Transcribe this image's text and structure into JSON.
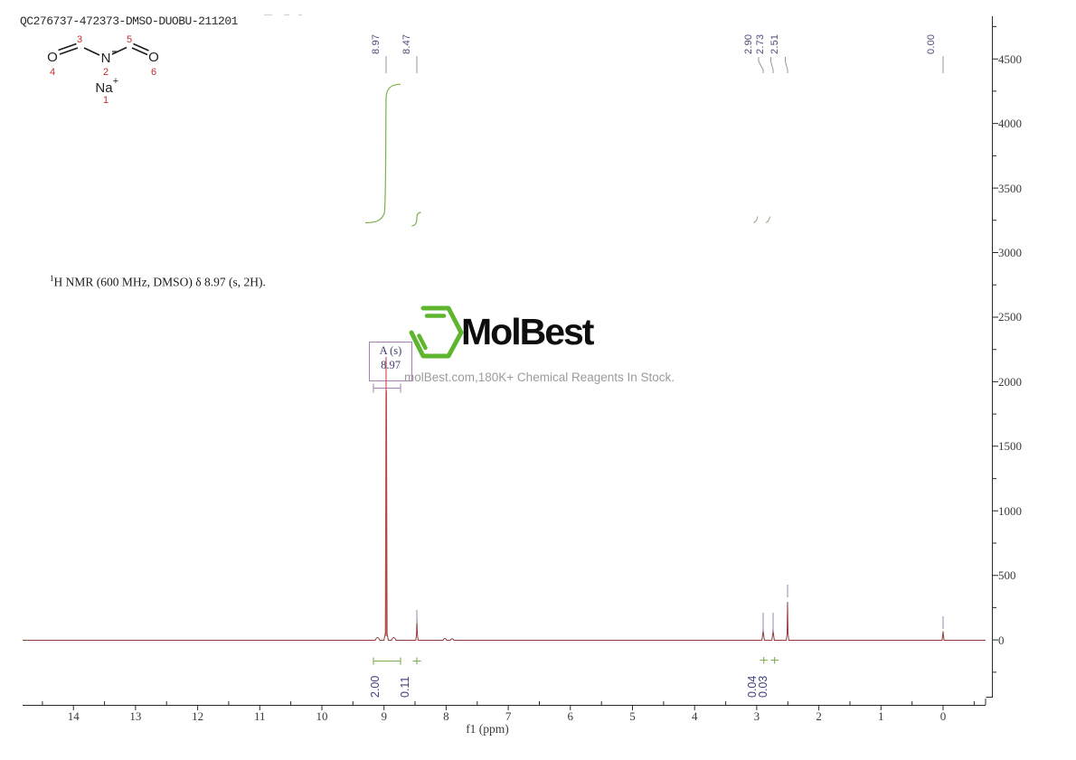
{
  "header": {
    "sample_id": "QC276737-472373-DMSO-DUOBU-211201"
  },
  "nmr_summary": {
    "sup": "1",
    "rest": "H NMR (600 MHz, DMSO) δ 8.97 (s, 2H)."
  },
  "logo": {
    "name": "MolBest",
    "tagline": "molBest.com,180K+ Chemical Reagents In Stock."
  },
  "annotation": {
    "line1": "A (s)",
    "line2": "8.97"
  },
  "structure": {
    "atom_o_left": "O",
    "atom_n": "N",
    "atom_o_right": "O",
    "atom_na": "Na",
    "charge_na": "+",
    "num_1": "1",
    "num_2": "2",
    "num_3": "3",
    "num_4": "4",
    "num_5": "5",
    "num_6": "6"
  },
  "chart_data": {
    "type": "line",
    "kind": "1H NMR spectrum",
    "xlabel": "f1 (ppm)",
    "x_axis": {
      "ticks": [
        14,
        13,
        12,
        11,
        10,
        9,
        8,
        7,
        6,
        5,
        4,
        3,
        2,
        1,
        0
      ],
      "direction": "reversed",
      "display_range": [
        15.3,
        -0.7
      ],
      "minor_tick_step": 0.5
    },
    "y_axis": {
      "ticks": [
        4500,
        4000,
        3500,
        3000,
        2500,
        2000,
        1500,
        1000,
        500,
        0
      ],
      "minor_tick_step": 250,
      "display_range": [
        -450,
        4830
      ],
      "side": "right"
    },
    "peaks": [
      {
        "ppm": 8.97,
        "label": "8.97",
        "intensity": 1950
      },
      {
        "ppm": 8.47,
        "label": "8.47",
        "intensity": 170
      },
      {
        "ppm": 2.9,
        "label": "2.90",
        "intensity": 90
      },
      {
        "ppm": 2.73,
        "label": "2.73",
        "intensity": 90
      },
      {
        "ppm": 2.51,
        "label": "2.51",
        "intensity": 300
      },
      {
        "ppm": 0.0,
        "label": "0.00",
        "intensity": 70
      }
    ],
    "integrations": [
      {
        "value": "2.00",
        "ppm": 8.97
      },
      {
        "value": "0.11",
        "ppm": 8.47
      },
      {
        "value": "0.04",
        "ppm": 2.9
      },
      {
        "value": "0.03",
        "ppm": 2.73
      }
    ],
    "multiplet": {
      "id": "A",
      "multiplicity": "s",
      "shift_ppm": 8.97
    }
  }
}
